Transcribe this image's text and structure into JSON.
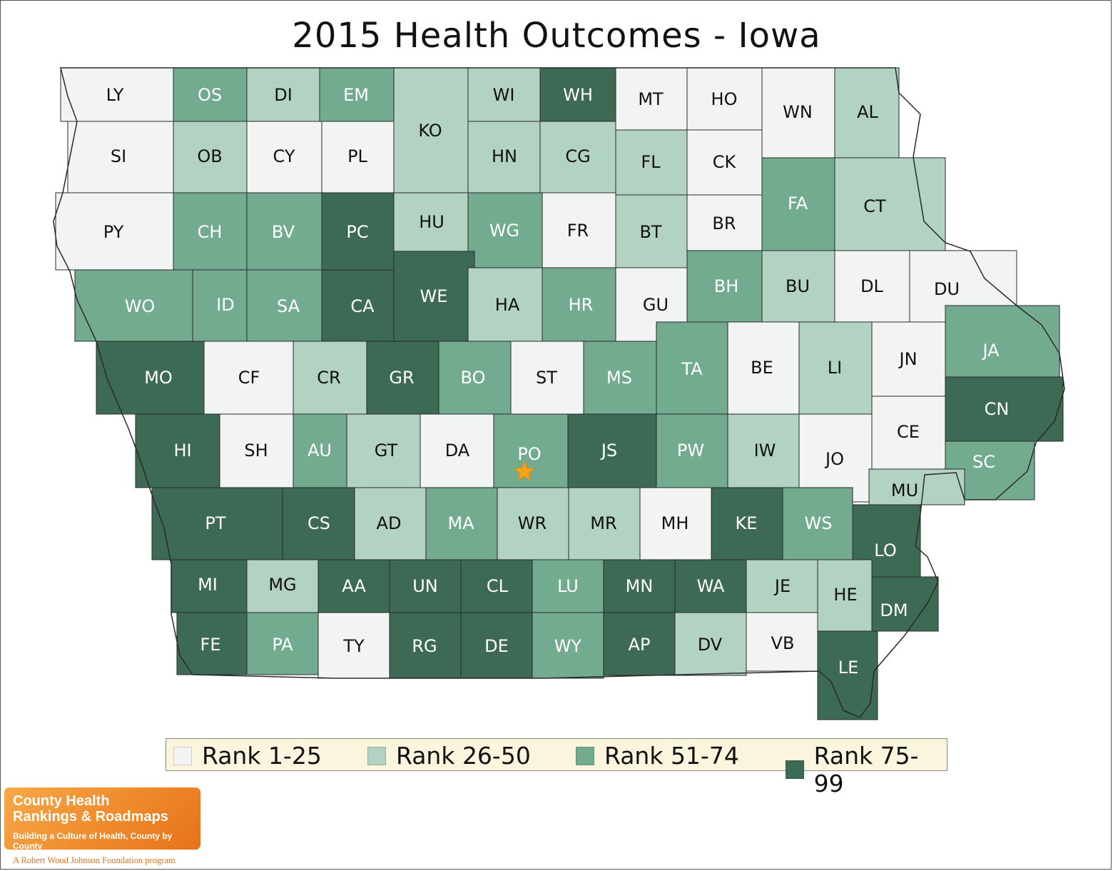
{
  "title": "2015 Health Outcomes - Iowa",
  "colors": {
    "rank_1_25": "#f1f4f2",
    "rank_26_50": "#b2d2c2",
    "rank_51_74": "#72ab90",
    "rank_75_99": "#3d6a54",
    "border": "#2a2a2a",
    "star": "#f5a31a"
  },
  "legend": [
    {
      "label": "Rank 1-25",
      "color": "#f1f4f2"
    },
    {
      "label": "Rank 26-50",
      "color": "#b2d2c2"
    },
    {
      "label": "Rank 51-74",
      "color": "#72ab90"
    },
    {
      "label": "Rank 75-99",
      "color": "#3d6a54"
    }
  ],
  "counties": [
    {
      "code": "LY",
      "rank": 1
    },
    {
      "code": "OS",
      "rank": 3
    },
    {
      "code": "DI",
      "rank": 2
    },
    {
      "code": "EM",
      "rank": 3
    },
    {
      "code": "KO",
      "rank": 2
    },
    {
      "code": "WI",
      "rank": 2
    },
    {
      "code": "WH",
      "rank": 4
    },
    {
      "code": "MT",
      "rank": 1
    },
    {
      "code": "HO",
      "rank": 1
    },
    {
      "code": "WN",
      "rank": 1
    },
    {
      "code": "AL",
      "rank": 2
    },
    {
      "code": "SI",
      "rank": 1
    },
    {
      "code": "OB",
      "rank": 2
    },
    {
      "code": "CY",
      "rank": 1
    },
    {
      "code": "PL",
      "rank": 1
    },
    {
      "code": "HN",
      "rank": 2
    },
    {
      "code": "CG",
      "rank": 2
    },
    {
      "code": "FL",
      "rank": 2
    },
    {
      "code": "CK",
      "rank": 1
    },
    {
      "code": "PY",
      "rank": 1
    },
    {
      "code": "CH",
      "rank": 3
    },
    {
      "code": "BV",
      "rank": 3
    },
    {
      "code": "PC",
      "rank": 4
    },
    {
      "code": "HU",
      "rank": 2
    },
    {
      "code": "WG",
      "rank": 3
    },
    {
      "code": "FR",
      "rank": 1
    },
    {
      "code": "BT",
      "rank": 2
    },
    {
      "code": "BR",
      "rank": 1
    },
    {
      "code": "FA",
      "rank": 3
    },
    {
      "code": "CT",
      "rank": 2
    },
    {
      "code": "WO",
      "rank": 3
    },
    {
      "code": "ID",
      "rank": 3
    },
    {
      "code": "SA",
      "rank": 3
    },
    {
      "code": "CA",
      "rank": 4
    },
    {
      "code": "WE",
      "rank": 4
    },
    {
      "code": "HA",
      "rank": 2
    },
    {
      "code": "HR",
      "rank": 3
    },
    {
      "code": "GU",
      "rank": 1
    },
    {
      "code": "BH",
      "rank": 3
    },
    {
      "code": "BU",
      "rank": 2
    },
    {
      "code": "DL",
      "rank": 1
    },
    {
      "code": "DU",
      "rank": 1
    },
    {
      "code": "MO",
      "rank": 4
    },
    {
      "code": "CF",
      "rank": 1
    },
    {
      "code": "CR",
      "rank": 2
    },
    {
      "code": "GR",
      "rank": 4
    },
    {
      "code": "BO",
      "rank": 3
    },
    {
      "code": "ST",
      "rank": 1
    },
    {
      "code": "MS",
      "rank": 3
    },
    {
      "code": "TA",
      "rank": 3
    },
    {
      "code": "BE",
      "rank": 1
    },
    {
      "code": "LI",
      "rank": 2
    },
    {
      "code": "JN",
      "rank": 1
    },
    {
      "code": "JA",
      "rank": 3
    },
    {
      "code": "CN",
      "rank": 4
    },
    {
      "code": "HI",
      "rank": 4
    },
    {
      "code": "SH",
      "rank": 1
    },
    {
      "code": "AU",
      "rank": 3
    },
    {
      "code": "GT",
      "rank": 2
    },
    {
      "code": "DA",
      "rank": 1
    },
    {
      "code": "PO",
      "rank": 3
    },
    {
      "code": "JS",
      "rank": 4
    },
    {
      "code": "PW",
      "rank": 3
    },
    {
      "code": "IW",
      "rank": 2
    },
    {
      "code": "JO",
      "rank": 1
    },
    {
      "code": "CE",
      "rank": 1
    },
    {
      "code": "SC",
      "rank": 3
    },
    {
      "code": "MU",
      "rank": 2
    },
    {
      "code": "PT",
      "rank": 4
    },
    {
      "code": "CS",
      "rank": 4
    },
    {
      "code": "AD",
      "rank": 2
    },
    {
      "code": "MA",
      "rank": 3
    },
    {
      "code": "WR",
      "rank": 2
    },
    {
      "code": "MR",
      "rank": 2
    },
    {
      "code": "MH",
      "rank": 1
    },
    {
      "code": "KE",
      "rank": 4
    },
    {
      "code": "WS",
      "rank": 3
    },
    {
      "code": "LO",
      "rank": 4
    },
    {
      "code": "MI",
      "rank": 4
    },
    {
      "code": "MG",
      "rank": 2
    },
    {
      "code": "AA",
      "rank": 4
    },
    {
      "code": "UN",
      "rank": 4
    },
    {
      "code": "CL",
      "rank": 4
    },
    {
      "code": "LU",
      "rank": 3
    },
    {
      "code": "MN",
      "rank": 4
    },
    {
      "code": "WA",
      "rank": 4
    },
    {
      "code": "JE",
      "rank": 2
    },
    {
      "code": "HE",
      "rank": 2
    },
    {
      "code": "DM",
      "rank": 4
    },
    {
      "code": "FE",
      "rank": 4
    },
    {
      "code": "PA",
      "rank": 3
    },
    {
      "code": "TY",
      "rank": 1
    },
    {
      "code": "RG",
      "rank": 4
    },
    {
      "code": "DE",
      "rank": 4
    },
    {
      "code": "WY",
      "rank": 3
    },
    {
      "code": "AP",
      "rank": 4
    },
    {
      "code": "DV",
      "rank": 2
    },
    {
      "code": "VB",
      "rank": 1
    },
    {
      "code": "LE",
      "rank": 4
    }
  ],
  "marker": {
    "county": "PO",
    "icon": "star-icon"
  },
  "logo": {
    "line1": "County Health",
    "line2": "Rankings & Roadmaps",
    "line3": "Building a Culture of Health, County by County",
    "footer": "A Robert Wood Johnson Foundation program"
  }
}
